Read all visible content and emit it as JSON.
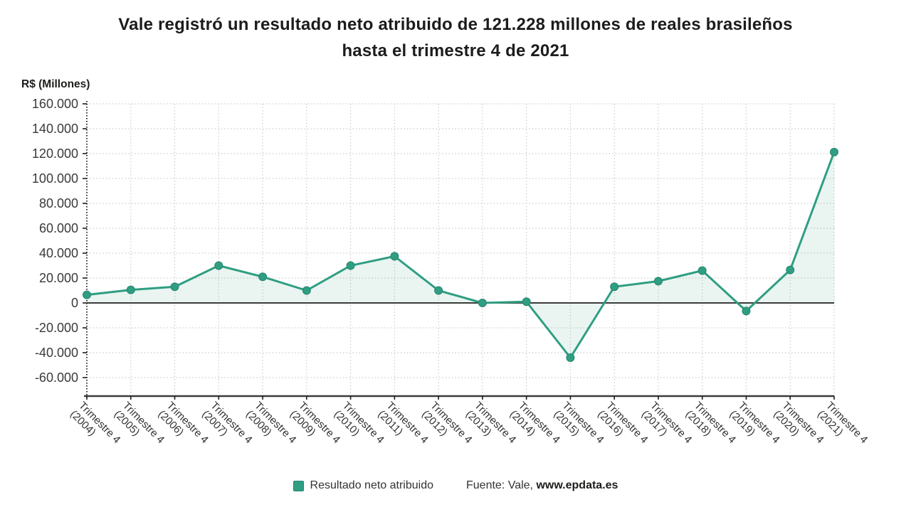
{
  "header": {
    "title_line1": "Vale registró un resultado neto atribuido de 121.228 millones de reales brasileños",
    "title_line2": "hasta el trimestre 4 de 2021"
  },
  "chart_data": {
    "type": "area",
    "title": "Vale registró un resultado neto atribuido de 121.228 millones de reales brasileños hasta el trimestre 4 de 2021",
    "unit_label": "R$ (Millones)",
    "xlabel": "",
    "ylabel": "R$ (Millones)",
    "categories": [
      "Trimestre 4 (2004)",
      "Trimestre 4 (2005)",
      "Trimestre 4 (2006)",
      "Trimestre 4 (2007)",
      "Trimestre 4 (2008)",
      "Trimestre 4 (2009)",
      "Trimestre 4 (2010)",
      "Trimestre 4 (2011)",
      "Trimestre 4 (2012)",
      "Trimestre 4 (2013)",
      "Trimestre 4 (2014)",
      "Trimestre 4 (2015)",
      "Trimestre 4 (2016)",
      "Trimestre 4 (2017)",
      "Trimestre 4 (2018)",
      "Trimestre 4 (2019)",
      "Trimestre 4 (2020)",
      "Trimestre 4 (2021)"
    ],
    "series": [
      {
        "name": "Resultado neto atribuido",
        "values": [
          6500,
          10500,
          13000,
          30000,
          21000,
          10000,
          30000,
          37500,
          10000,
          0,
          1000,
          -44000,
          13000,
          17500,
          26000,
          -6500,
          26500,
          121228
        ]
      }
    ],
    "y_axis": {
      "tick_labels": [
        "160.000",
        "140.000",
        "120.000",
        "100.000",
        "80.000",
        "60.000",
        "40.000",
        "20.000",
        "0",
        "-20.000",
        "-40.000",
        "-60.000"
      ],
      "tick_step": 20000,
      "ylim": [
        -75000,
        160000
      ]
    },
    "grid": "dotted",
    "legend_position": "bottom-center",
    "source_prefix": "Fuente: Vale, ",
    "source_site": "www.epdata.es",
    "colors": {
      "line": "#2f9e82",
      "marker": "#2f9e82",
      "marker_border": "#27866e",
      "fill": "rgba(47,158,130,0.10)",
      "grid": "#cccccc",
      "axis": "#3c3c3b",
      "axis_dots": "#1d1d1b",
      "tick_text": "#3a3a3a",
      "title_text": "#1c1c1c"
    }
  }
}
